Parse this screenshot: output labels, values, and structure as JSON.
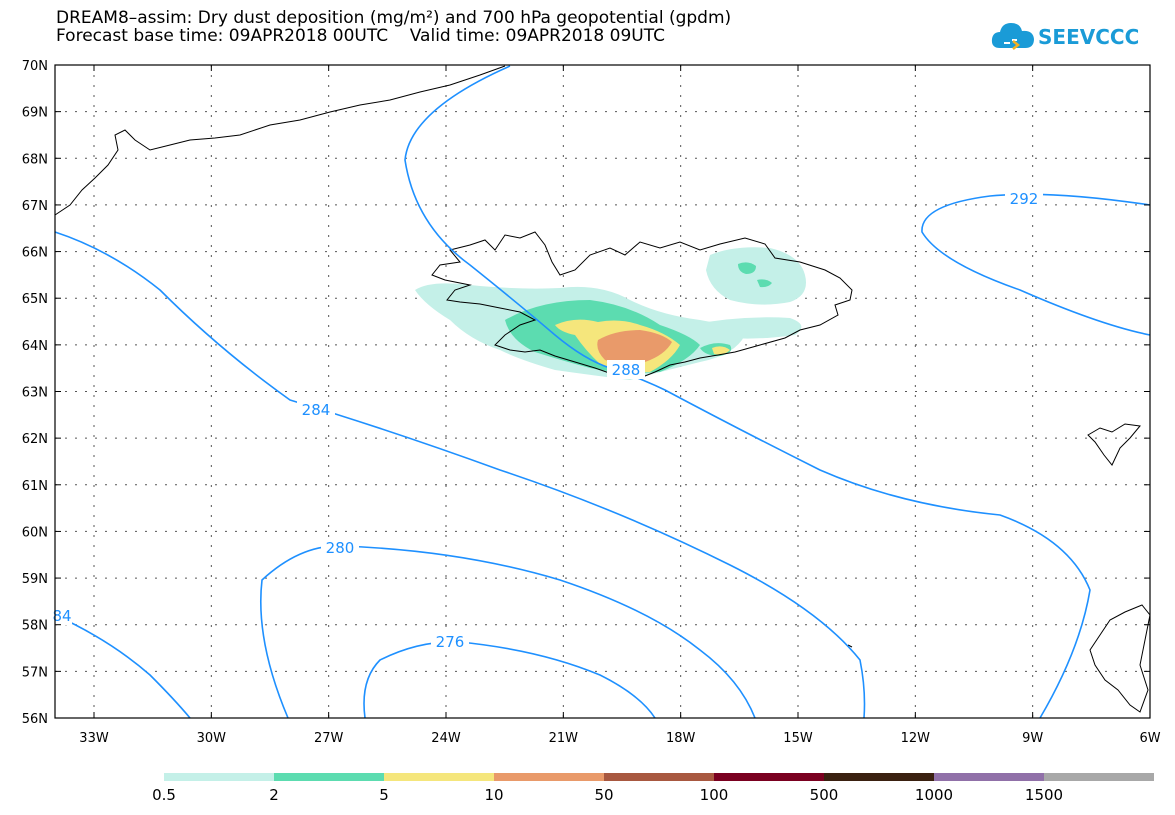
{
  "header": {
    "title_line1": "DREAM8–assim: Dry dust deposition (mg/m²) and 700 hPa geopotential (gpdm)",
    "title_line2": "Forecast base time: 09APR2018 00UTC    Valid time: 09APR2018 09UTC"
  },
  "logo": {
    "text": "SEEVCCC",
    "icon": "cloud-icon",
    "color": "#1a9bd7"
  },
  "map": {
    "lat_labels": [
      "70N",
      "69N",
      "68N",
      "67N",
      "66N",
      "65N",
      "64N",
      "63N",
      "62N",
      "61N",
      "60N",
      "59N",
      "58N",
      "57N",
      "56N"
    ],
    "lon_labels": [
      "33W",
      "30W",
      "27W",
      "24W",
      "21W",
      "18W",
      "15W",
      "12W",
      "9W",
      "6W"
    ],
    "contour_color": "#1e90ff",
    "contour_labels": [
      "292",
      "288",
      "284",
      "280",
      "276",
      "84"
    ]
  },
  "colorbar": {
    "labels": [
      "0.5",
      "2",
      "5",
      "10",
      "50",
      "100",
      "500",
      "1000",
      "1500"
    ],
    "colors": [
      "#c4f0e8",
      "#5cdcb0",
      "#f5e67c",
      "#e99a6a",
      "#a85840",
      "#7a0020",
      "#3a2010",
      "#9070a8",
      "#a8a8a8"
    ]
  }
}
